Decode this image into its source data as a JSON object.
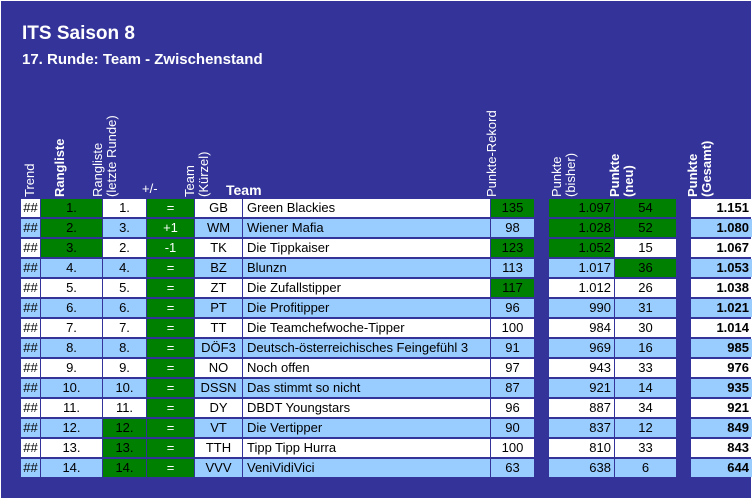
{
  "title": "ITS Saison 8",
  "subtitle": "17. Runde: Team - Zwischenstand",
  "headers": {
    "trend": "Trend",
    "rangliste": "Rangliste",
    "rangliste_letzte": "Rangliste (letzte Runde)",
    "plusminus": "+/-",
    "team_kuerzel": "Team (Kürzel)",
    "team": "Team",
    "punkte_rekord": "Punkte-Rekord",
    "punkte_bisher": "Punkte (bisher)",
    "punkte_neu": "Punkte (neu)",
    "punkte_gesamt": "Punkte (Gesamt)"
  },
  "colors": {
    "frame": "#333399",
    "light_row": "#99ccff",
    "white_row": "#ffffff",
    "highlight": "#008000"
  },
  "rows": [
    {
      "trend": "##",
      "rank": "1.",
      "last": "1.",
      "pm": "=",
      "abbr": "GB",
      "team": "Green Blackies",
      "rec": "135",
      "prev": "1.097",
      "new": "54",
      "total": "1.151",
      "hl": {
        "rank": true,
        "pm": true,
        "rec": true,
        "prev": true,
        "new": true
      }
    },
    {
      "trend": "##",
      "rank": "2.",
      "last": "3.",
      "pm": "+1",
      "abbr": "WM",
      "team": "Wiener Mafia",
      "rec": "98",
      "prev": "1.028",
      "new": "52",
      "total": "1.080",
      "hl": {
        "rank": true,
        "pm": true,
        "prev": true,
        "new": true
      }
    },
    {
      "trend": "##",
      "rank": "3.",
      "last": "2.",
      "pm": "-1",
      "abbr": "TK",
      "team": "Die Tippkaiser",
      "rec": "123",
      "prev": "1.052",
      "new": "15",
      "total": "1.067",
      "hl": {
        "rank": true,
        "pm": true,
        "rec": true,
        "prev": true
      }
    },
    {
      "trend": "##",
      "rank": "4.",
      "last": "4.",
      "pm": "=",
      "abbr": "BZ",
      "team": "Blunzn",
      "rec": "113",
      "prev": "1.017",
      "new": "36",
      "total": "1.053",
      "hl": {
        "pm": true,
        "new": true
      }
    },
    {
      "trend": "##",
      "rank": "5.",
      "last": "5.",
      "pm": "=",
      "abbr": "ZT",
      "team": "Die Zufallstipper",
      "rec": "117",
      "prev": "1.012",
      "new": "26",
      "total": "1.038",
      "hl": {
        "pm": true,
        "rec": true
      }
    },
    {
      "trend": "##",
      "rank": "6.",
      "last": "6.",
      "pm": "=",
      "abbr": "PT",
      "team": "Die Profitipper",
      "rec": "96",
      "prev": "990",
      "new": "31",
      "total": "1.021",
      "hl": {
        "pm": true
      }
    },
    {
      "trend": "##",
      "rank": "7.",
      "last": "7.",
      "pm": "=",
      "abbr": "TT",
      "team": "Die Teamchefwoche-Tipper",
      "rec": "100",
      "prev": "984",
      "new": "30",
      "total": "1.014",
      "hl": {
        "pm": true
      }
    },
    {
      "trend": "##",
      "rank": "8.",
      "last": "8.",
      "pm": "=",
      "abbr": "DÖF3",
      "team": "Deutsch-österreichisches Feingefühl 3",
      "rec": "91",
      "prev": "969",
      "new": "16",
      "total": "985",
      "hl": {
        "pm": true
      }
    },
    {
      "trend": "##",
      "rank": "9.",
      "last": "9.",
      "pm": "=",
      "abbr": "NO",
      "team": "Noch offen",
      "rec": "97",
      "prev": "943",
      "new": "33",
      "total": "976",
      "hl": {
        "pm": true
      }
    },
    {
      "trend": "##",
      "rank": "10.",
      "last": "10.",
      "pm": "=",
      "abbr": "DSSN",
      "team": "Das stimmt so nicht",
      "rec": "87",
      "prev": "921",
      "new": "14",
      "total": "935",
      "hl": {
        "pm": true
      }
    },
    {
      "trend": "##",
      "rank": "11.",
      "last": "11.",
      "pm": "=",
      "abbr": "DY",
      "team": "DBDT Youngstars",
      "rec": "96",
      "prev": "887",
      "new": "34",
      "total": "921",
      "hl": {
        "pm": true
      }
    },
    {
      "trend": "##",
      "rank": "12.",
      "last": "12.",
      "pm": "=",
      "abbr": "VT",
      "team": "Die Vertipper",
      "rec": "90",
      "prev": "837",
      "new": "12",
      "total": "849",
      "hl": {
        "pm": true,
        "last": true
      }
    },
    {
      "trend": "##",
      "rank": "13.",
      "last": "13.",
      "pm": "=",
      "abbr": "TTH",
      "team": "Tipp Tipp Hurra",
      "rec": "100",
      "prev": "810",
      "new": "33",
      "total": "843",
      "hl": {
        "pm": true,
        "last": true
      }
    },
    {
      "trend": "##",
      "rank": "14.",
      "last": "14.",
      "pm": "=",
      "abbr": "VVV",
      "team": "VeniVidiVici",
      "rec": "63",
      "prev": "638",
      "new": "6",
      "total": "644",
      "hl": {
        "pm": true,
        "last": true
      }
    }
  ]
}
